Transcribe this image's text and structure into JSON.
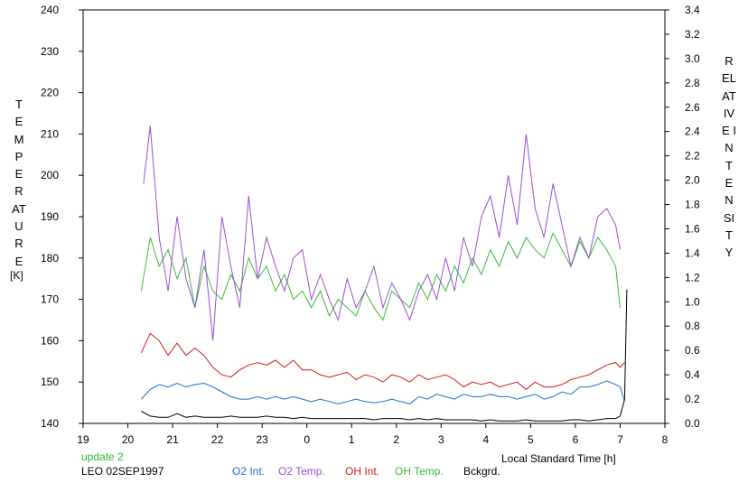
{
  "chart_data": {
    "type": "line",
    "title": "",
    "xlabel": "Local Standard Time [h]",
    "ylabel_left": "TEMPERATURE",
    "ylabel_left_unit": "[K]",
    "ylabel_right": "RELATIVE INTENSITY",
    "xlim": [
      19,
      32
    ],
    "xticks": [
      19,
      20,
      21,
      22,
      23,
      24,
      25,
      26,
      27,
      28,
      29,
      30,
      31,
      32
    ],
    "xtick_labels": [
      "19",
      "20",
      "21",
      "22",
      "23",
      "0",
      "1",
      "2",
      "3",
      "4",
      "5",
      "6",
      "7",
      "8"
    ],
    "ylim_left": [
      140,
      240
    ],
    "yticks_left": [
      "140",
      "150",
      "160",
      "170",
      "180",
      "190",
      "200",
      "210",
      "220",
      "230",
      "240"
    ],
    "ylim_right": [
      0,
      3.4
    ],
    "yticks_right": [
      "0.0",
      "0.2",
      "0.4",
      "0.6",
      "0.8",
      "1.0",
      "1.2",
      "1.4",
      "1.6",
      "1.8",
      "2.0",
      "2.2",
      "2.4",
      "2.6",
      "2.8",
      "3.0",
      "3.2",
      "3.4"
    ],
    "grid": false,
    "legend_position": "bottom",
    "annotations": {
      "status": "update 2",
      "site_date": "LEO 02SEP1997"
    },
    "series": [
      {
        "name": "O2 Int.",
        "axis": "right",
        "color": "#1c6fd0",
        "x": [
          20.3,
          20.5,
          20.7,
          20.9,
          21.1,
          21.3,
          21.5,
          21.7,
          21.9,
          22.1,
          22.3,
          22.5,
          22.7,
          22.9,
          23.1,
          23.3,
          23.5,
          23.7,
          23.9,
          24.1,
          24.3,
          24.5,
          24.7,
          24.9,
          25.1,
          25.3,
          25.5,
          25.7,
          25.9,
          26.1,
          26.3,
          26.5,
          26.7,
          26.9,
          27.1,
          27.3,
          27.5,
          27.7,
          27.9,
          28.1,
          28.3,
          28.5,
          28.7,
          28.9,
          29.1,
          29.3,
          29.5,
          29.7,
          29.9,
          30.1,
          30.3,
          30.5,
          30.7,
          30.9,
          31.0,
          31.1
        ],
        "y": [
          0.2,
          0.28,
          0.32,
          0.3,
          0.33,
          0.3,
          0.32,
          0.33,
          0.3,
          0.26,
          0.22,
          0.2,
          0.2,
          0.22,
          0.2,
          0.22,
          0.2,
          0.22,
          0.2,
          0.18,
          0.2,
          0.18,
          0.16,
          0.18,
          0.2,
          0.18,
          0.17,
          0.18,
          0.2,
          0.18,
          0.16,
          0.22,
          0.2,
          0.24,
          0.22,
          0.2,
          0.24,
          0.22,
          0.22,
          0.24,
          0.22,
          0.22,
          0.2,
          0.22,
          0.24,
          0.2,
          0.22,
          0.26,
          0.24,
          0.3,
          0.3,
          0.32,
          0.35,
          0.32,
          0.3,
          0.18
        ]
      },
      {
        "name": "O2 Temp.",
        "axis": "left",
        "color": "#9a4fd0",
        "x": [
          20.35,
          20.5,
          20.7,
          20.9,
          21.1,
          21.3,
          21.5,
          21.7,
          21.9,
          22.1,
          22.3,
          22.5,
          22.7,
          22.9,
          23.1,
          23.3,
          23.5,
          23.7,
          23.9,
          24.1,
          24.3,
          24.5,
          24.7,
          24.9,
          25.1,
          25.3,
          25.5,
          25.7,
          25.9,
          26.1,
          26.3,
          26.5,
          26.7,
          26.9,
          27.1,
          27.3,
          27.5,
          27.7,
          27.9,
          28.1,
          28.3,
          28.5,
          28.7,
          28.9,
          29.1,
          29.3,
          29.5,
          29.7,
          29.9,
          30.1,
          30.3,
          30.5,
          30.7,
          30.9,
          31.0
        ],
        "y": [
          198,
          212,
          185,
          172,
          190,
          175,
          168,
          182,
          160,
          190,
          178,
          168,
          195,
          175,
          185,
          178,
          172,
          180,
          182,
          170,
          176,
          170,
          165,
          175,
          168,
          172,
          178,
          168,
          174,
          170,
          165,
          172,
          176,
          170,
          180,
          172,
          185,
          178,
          190,
          195,
          185,
          200,
          188,
          210,
          192,
          185,
          198,
          188,
          178,
          185,
          180,
          190,
          192,
          188,
          182
        ]
      },
      {
        "name": "OH Int.",
        "axis": "right",
        "color": "#d01c1c",
        "x": [
          20.3,
          20.5,
          20.7,
          20.9,
          21.1,
          21.3,
          21.5,
          21.7,
          21.9,
          22.1,
          22.3,
          22.5,
          22.7,
          22.9,
          23.1,
          23.3,
          23.5,
          23.7,
          23.9,
          24.1,
          24.3,
          24.5,
          24.7,
          24.9,
          25.1,
          25.3,
          25.5,
          25.7,
          25.9,
          26.1,
          26.3,
          26.5,
          26.7,
          26.9,
          27.1,
          27.3,
          27.5,
          27.7,
          27.9,
          28.1,
          28.3,
          28.5,
          28.7,
          28.9,
          29.1,
          29.3,
          29.5,
          29.7,
          29.9,
          30.1,
          30.3,
          30.5,
          30.7,
          30.9,
          31.0,
          31.1
        ],
        "y": [
          0.58,
          0.74,
          0.68,
          0.56,
          0.66,
          0.56,
          0.62,
          0.56,
          0.46,
          0.4,
          0.38,
          0.44,
          0.48,
          0.5,
          0.48,
          0.52,
          0.46,
          0.52,
          0.44,
          0.44,
          0.4,
          0.38,
          0.4,
          0.42,
          0.36,
          0.4,
          0.38,
          0.34,
          0.4,
          0.38,
          0.34,
          0.4,
          0.36,
          0.38,
          0.4,
          0.36,
          0.3,
          0.34,
          0.32,
          0.34,
          0.3,
          0.32,
          0.34,
          0.28,
          0.34,
          0.3,
          0.3,
          0.32,
          0.36,
          0.38,
          0.4,
          0.44,
          0.48,
          0.5,
          0.46,
          0.5
        ]
      },
      {
        "name": "OH Temp.",
        "axis": "left",
        "color": "#3cb83c",
        "x": [
          20.3,
          20.5,
          20.7,
          20.9,
          21.1,
          21.3,
          21.5,
          21.7,
          21.9,
          22.1,
          22.3,
          22.5,
          22.7,
          22.9,
          23.1,
          23.3,
          23.5,
          23.7,
          23.9,
          24.1,
          24.3,
          24.5,
          24.7,
          24.9,
          25.1,
          25.3,
          25.5,
          25.7,
          25.9,
          26.1,
          26.3,
          26.5,
          26.7,
          26.9,
          27.1,
          27.3,
          27.5,
          27.7,
          27.9,
          28.1,
          28.3,
          28.5,
          28.7,
          28.9,
          29.1,
          29.3,
          29.5,
          29.7,
          29.9,
          30.1,
          30.3,
          30.5,
          30.7,
          30.9,
          31.0
        ],
        "y": [
          172,
          185,
          178,
          182,
          175,
          180,
          168,
          178,
          172,
          170,
          176,
          172,
          180,
          175,
          178,
          172,
          176,
          170,
          172,
          168,
          172,
          166,
          170,
          168,
          166,
          172,
          168,
          165,
          172,
          170,
          168,
          174,
          170,
          176,
          172,
          178,
          174,
          180,
          176,
          182,
          178,
          184,
          180,
          185,
          182,
          180,
          186,
          182,
          178,
          184,
          180,
          185,
          182,
          178,
          168
        ]
      },
      {
        "name": "Bckgrd.",
        "axis": "right",
        "color": "#000000",
        "x": [
          20.3,
          20.5,
          20.7,
          20.9,
          21.1,
          21.3,
          21.5,
          21.7,
          21.9,
          22.1,
          22.3,
          22.5,
          22.7,
          22.9,
          23.1,
          23.3,
          23.5,
          23.7,
          23.9,
          24.1,
          24.3,
          24.5,
          24.7,
          24.9,
          25.1,
          25.3,
          25.5,
          25.7,
          25.9,
          26.1,
          26.3,
          26.5,
          26.7,
          26.9,
          27.1,
          27.3,
          27.5,
          27.7,
          27.9,
          28.1,
          28.3,
          28.5,
          28.7,
          28.9,
          29.1,
          29.3,
          29.5,
          29.7,
          29.9,
          30.1,
          30.3,
          30.5,
          30.7,
          30.9,
          31.0,
          31.1,
          31.15
        ],
        "y": [
          0.1,
          0.06,
          0.05,
          0.05,
          0.08,
          0.05,
          0.06,
          0.05,
          0.05,
          0.05,
          0.06,
          0.05,
          0.05,
          0.05,
          0.06,
          0.05,
          0.05,
          0.04,
          0.05,
          0.04,
          0.04,
          0.04,
          0.04,
          0.04,
          0.04,
          0.04,
          0.03,
          0.04,
          0.04,
          0.04,
          0.03,
          0.04,
          0.03,
          0.04,
          0.03,
          0.03,
          0.03,
          0.03,
          0.02,
          0.03,
          0.02,
          0.02,
          0.02,
          0.03,
          0.02,
          0.02,
          0.02,
          0.02,
          0.03,
          0.03,
          0.02,
          0.03,
          0.04,
          0.04,
          0.06,
          0.2,
          1.1
        ]
      }
    ]
  }
}
